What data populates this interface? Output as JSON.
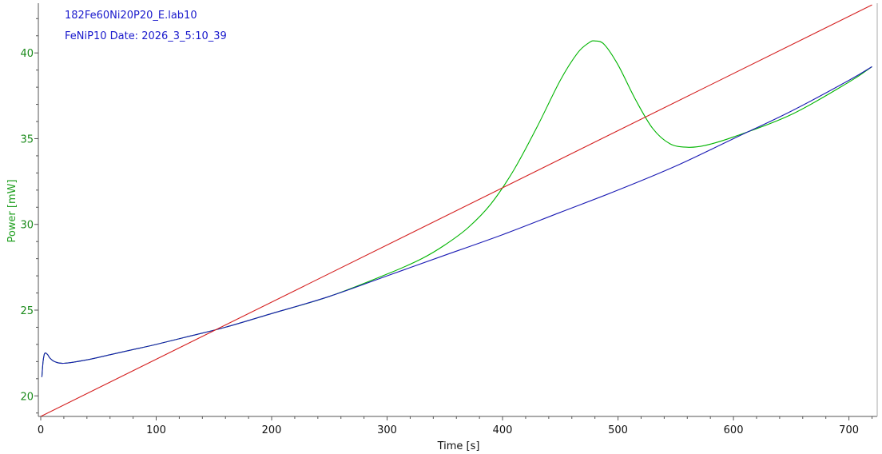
{
  "chart_data": {
    "type": "line",
    "title_lines": [
      "182Fe60Ni20P20_E.lab10",
      "FeNiP10  Date: 2026_3_5:10_39"
    ],
    "xlabel": "Time [s]",
    "ylabel": "Power  [mW]",
    "xlim": [
      0,
      720
    ],
    "ylim": [
      18.8,
      42.9
    ],
    "x_ticks": [
      0,
      100,
      200,
      300,
      400,
      500,
      600,
      700
    ],
    "y_ticks": [
      20,
      25,
      30,
      35,
      40
    ],
    "grid": false,
    "colors": {
      "title": "#1a1acc",
      "ylabel": "#22a022",
      "y_tick_labels": "#1a8a1a",
      "x_tick_labels": "#111111",
      "xlabel": "#111111"
    },
    "series": [
      {
        "color": "#00b400",
        "points": [
          [
            1,
            21.1
          ],
          [
            2,
            22.0
          ],
          [
            3,
            22.4
          ],
          [
            4,
            22.5
          ],
          [
            6,
            22.4
          ],
          [
            8,
            22.2
          ],
          [
            12,
            22.0
          ],
          [
            20,
            21.9
          ],
          [
            40,
            22.1
          ],
          [
            60,
            22.4
          ],
          [
            80,
            22.7
          ],
          [
            100,
            23.0
          ],
          [
            130,
            23.5
          ],
          [
            160,
            24.0
          ],
          [
            200,
            24.8
          ],
          [
            250,
            25.8
          ],
          [
            300,
            27.1
          ],
          [
            330,
            28.0
          ],
          [
            350,
            28.8
          ],
          [
            370,
            29.8
          ],
          [
            390,
            31.2
          ],
          [
            410,
            33.2
          ],
          [
            430,
            35.7
          ],
          [
            450,
            38.4
          ],
          [
            465,
            40.0
          ],
          [
            475,
            40.6
          ],
          [
            480,
            40.7
          ],
          [
            488,
            40.5
          ],
          [
            500,
            39.3
          ],
          [
            515,
            37.3
          ],
          [
            530,
            35.6
          ],
          [
            545,
            34.7
          ],
          [
            560,
            34.5
          ],
          [
            575,
            34.6
          ],
          [
            600,
            35.1
          ],
          [
            650,
            36.4
          ],
          [
            700,
            38.3
          ],
          [
            720,
            39.2
          ]
        ]
      },
      {
        "color": "#1a1ab4",
        "points": [
          [
            1,
            21.1
          ],
          [
            2,
            22.0
          ],
          [
            3,
            22.4
          ],
          [
            4,
            22.5
          ],
          [
            6,
            22.4
          ],
          [
            8,
            22.2
          ],
          [
            12,
            22.0
          ],
          [
            20,
            21.9
          ],
          [
            40,
            22.1
          ],
          [
            60,
            22.4
          ],
          [
            80,
            22.7
          ],
          [
            100,
            23.0
          ],
          [
            130,
            23.5
          ],
          [
            160,
            24.0
          ],
          [
            200,
            24.8
          ],
          [
            250,
            25.8
          ],
          [
            300,
            27.0
          ],
          [
            350,
            28.2
          ],
          [
            400,
            29.4
          ],
          [
            450,
            30.7
          ],
          [
            500,
            32.0
          ],
          [
            550,
            33.4
          ],
          [
            600,
            35.0
          ],
          [
            650,
            36.6
          ],
          [
            700,
            38.4
          ],
          [
            720,
            39.2
          ]
        ]
      },
      {
        "color": "#d42020",
        "points": [
          [
            0,
            18.8
          ],
          [
            720,
            42.8
          ]
        ]
      }
    ]
  }
}
